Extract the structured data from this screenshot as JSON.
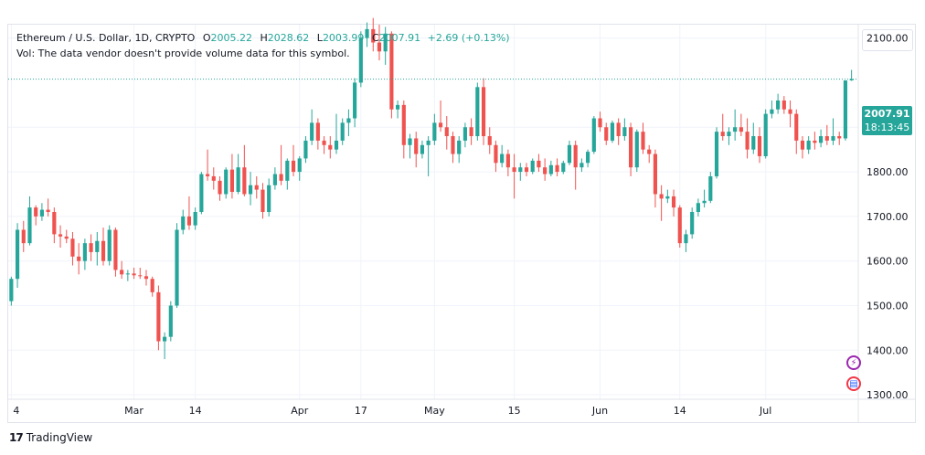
{
  "legend": {
    "symbol": "Ethereum / U.S. Dollar, 1D, CRYPTO",
    "open_label": "O",
    "open": "2005.22",
    "high_label": "H",
    "high": "2028.62",
    "low_label": "L",
    "low": "2003.99",
    "close_label": "C",
    "close": "2007.91",
    "change": "+2.69 (+0.13%)",
    "volume_note": "Vol: The data vendor doesn't provide volume data for this symbol."
  },
  "price_tag": {
    "price": "2007.91",
    "countdown": "18:13:45"
  },
  "brand": {
    "name": "TradingView"
  },
  "colors": {
    "up": "#26a69a",
    "down": "#ef5350",
    "grid": "#f0f3fa"
  },
  "chart_data": {
    "type": "candlestick",
    "y_ticks": [
      "2100.00",
      "1900.00",
      "1800.00",
      "1700.00",
      "1600.00",
      "1500.00",
      "1400.00",
      "1300.00"
    ],
    "ylim": [
      1290,
      2130
    ],
    "x_ticks": [
      "4",
      "Mar",
      "14",
      "Apr",
      "17",
      "May",
      "15",
      "Jun",
      "14",
      "Jul"
    ],
    "current_price": 2007.91,
    "candles": [
      [
        1510,
        1565,
        1500,
        1560
      ],
      [
        1560,
        1685,
        1540,
        1670
      ],
      [
        1670,
        1690,
        1620,
        1640
      ],
      [
        1640,
        1745,
        1635,
        1720
      ],
      [
        1720,
        1725,
        1680,
        1700
      ],
      [
        1700,
        1730,
        1690,
        1715
      ],
      [
        1715,
        1740,
        1700,
        1710
      ],
      [
        1710,
        1720,
        1640,
        1660
      ],
      [
        1660,
        1680,
        1630,
        1655
      ],
      [
        1655,
        1670,
        1640,
        1650
      ],
      [
        1650,
        1665,
        1590,
        1610
      ],
      [
        1610,
        1640,
        1570,
        1600
      ],
      [
        1600,
        1650,
        1580,
        1640
      ],
      [
        1640,
        1660,
        1600,
        1620
      ],
      [
        1620,
        1665,
        1590,
        1645
      ],
      [
        1645,
        1675,
        1590,
        1600
      ],
      [
        1600,
        1680,
        1590,
        1670
      ],
      [
        1670,
        1675,
        1565,
        1580
      ],
      [
        1580,
        1600,
        1560,
        1570
      ],
      [
        1570,
        1580,
        1555,
        1572
      ],
      [
        1572,
        1585,
        1560,
        1568
      ],
      [
        1568,
        1585,
        1560,
        1566
      ],
      [
        1566,
        1580,
        1545,
        1560
      ],
      [
        1560,
        1565,
        1520,
        1530
      ],
      [
        1530,
        1545,
        1400,
        1420
      ],
      [
        1420,
        1440,
        1380,
        1430
      ],
      [
        1430,
        1510,
        1420,
        1500
      ],
      [
        1500,
        1685,
        1495,
        1670
      ],
      [
        1670,
        1715,
        1660,
        1700
      ],
      [
        1700,
        1745,
        1670,
        1680
      ],
      [
        1680,
        1720,
        1670,
        1710
      ],
      [
        1710,
        1800,
        1705,
        1795
      ],
      [
        1795,
        1850,
        1780,
        1790
      ],
      [
        1790,
        1810,
        1760,
        1780
      ],
      [
        1780,
        1790,
        1735,
        1750
      ],
      [
        1750,
        1810,
        1740,
        1805
      ],
      [
        1805,
        1840,
        1740,
        1755
      ],
      [
        1755,
        1840,
        1750,
        1810
      ],
      [
        1810,
        1860,
        1745,
        1750
      ],
      [
        1750,
        1800,
        1725,
        1770
      ],
      [
        1770,
        1790,
        1740,
        1760
      ],
      [
        1760,
        1775,
        1695,
        1710
      ],
      [
        1710,
        1785,
        1700,
        1770
      ],
      [
        1770,
        1810,
        1760,
        1795
      ],
      [
        1795,
        1860,
        1770,
        1780
      ],
      [
        1780,
        1830,
        1760,
        1825
      ],
      [
        1825,
        1860,
        1790,
        1800
      ],
      [
        1800,
        1835,
        1780,
        1830
      ],
      [
        1830,
        1880,
        1820,
        1870
      ],
      [
        1870,
        1940,
        1860,
        1910
      ],
      [
        1910,
        1920,
        1850,
        1870
      ],
      [
        1870,
        1880,
        1840,
        1860
      ],
      [
        1860,
        1880,
        1830,
        1850
      ],
      [
        1850,
        1930,
        1840,
        1870
      ],
      [
        1870,
        1920,
        1860,
        1910
      ],
      [
        1910,
        1940,
        1880,
        1920
      ],
      [
        1920,
        2010,
        1900,
        2000
      ],
      [
        2000,
        2115,
        1990,
        2100
      ],
      [
        2100,
        2135,
        2080,
        2120
      ],
      [
        2120,
        2145,
        2070,
        2090
      ],
      [
        2090,
        2130,
        2050,
        2070
      ],
      [
        2070,
        2125,
        2040,
        2110
      ],
      [
        2110,
        2115,
        1920,
        1940
      ],
      [
        1940,
        1960,
        1920,
        1950
      ],
      [
        1950,
        1960,
        1830,
        1860
      ],
      [
        1860,
        1885,
        1830,
        1875
      ],
      [
        1875,
        1890,
        1810,
        1840
      ],
      [
        1840,
        1870,
        1830,
        1860
      ],
      [
        1860,
        1880,
        1790,
        1870
      ],
      [
        1870,
        1930,
        1860,
        1910
      ],
      [
        1910,
        1960,
        1890,
        1900
      ],
      [
        1900,
        1925,
        1850,
        1880
      ],
      [
        1880,
        1890,
        1820,
        1840
      ],
      [
        1840,
        1880,
        1820,
        1870
      ],
      [
        1870,
        1910,
        1855,
        1900
      ],
      [
        1900,
        1920,
        1860,
        1880
      ],
      [
        1880,
        2000,
        1870,
        1990
      ],
      [
        1990,
        2010,
        1860,
        1880
      ],
      [
        1880,
        1900,
        1840,
        1860
      ],
      [
        1860,
        1870,
        1800,
        1820
      ],
      [
        1820,
        1860,
        1810,
        1840
      ],
      [
        1840,
        1850,
        1790,
        1810
      ],
      [
        1810,
        1840,
        1740,
        1800
      ],
      [
        1800,
        1820,
        1780,
        1810
      ],
      [
        1810,
        1820,
        1790,
        1800
      ],
      [
        1800,
        1830,
        1795,
        1825
      ],
      [
        1825,
        1840,
        1800,
        1810
      ],
      [
        1810,
        1830,
        1780,
        1795
      ],
      [
        1795,
        1825,
        1790,
        1815
      ],
      [
        1815,
        1830,
        1790,
        1800
      ],
      [
        1800,
        1825,
        1795,
        1820
      ],
      [
        1820,
        1870,
        1815,
        1860
      ],
      [
        1860,
        1870,
        1760,
        1810
      ],
      [
        1810,
        1830,
        1800,
        1820
      ],
      [
        1820,
        1850,
        1810,
        1845
      ],
      [
        1845,
        1925,
        1840,
        1920
      ],
      [
        1920,
        1935,
        1890,
        1900
      ],
      [
        1900,
        1910,
        1860,
        1870
      ],
      [
        1870,
        1915,
        1865,
        1910
      ],
      [
        1910,
        1920,
        1860,
        1880
      ],
      [
        1880,
        1920,
        1870,
        1900
      ],
      [
        1900,
        1910,
        1790,
        1810
      ],
      [
        1810,
        1895,
        1800,
        1890
      ],
      [
        1890,
        1910,
        1840,
        1850
      ],
      [
        1850,
        1860,
        1820,
        1840
      ],
      [
        1840,
        1850,
        1720,
        1750
      ],
      [
        1750,
        1770,
        1690,
        1740
      ],
      [
        1740,
        1760,
        1730,
        1745
      ],
      [
        1745,
        1760,
        1700,
        1720
      ],
      [
        1720,
        1725,
        1630,
        1640
      ],
      [
        1640,
        1670,
        1620,
        1660
      ],
      [
        1660,
        1720,
        1650,
        1710
      ],
      [
        1710,
        1740,
        1700,
        1730
      ],
      [
        1730,
        1760,
        1720,
        1735
      ],
      [
        1735,
        1800,
        1730,
        1790
      ],
      [
        1790,
        1900,
        1785,
        1890
      ],
      [
        1890,
        1930,
        1870,
        1880
      ],
      [
        1880,
        1900,
        1860,
        1890
      ],
      [
        1890,
        1940,
        1870,
        1900
      ],
      [
        1900,
        1930,
        1880,
        1890
      ],
      [
        1890,
        1920,
        1830,
        1850
      ],
      [
        1850,
        1910,
        1840,
        1880
      ],
      [
        1880,
        1900,
        1820,
        1835
      ],
      [
        1835,
        1940,
        1830,
        1930
      ],
      [
        1930,
        1960,
        1920,
        1940
      ],
      [
        1940,
        1975,
        1930,
        1960
      ],
      [
        1960,
        1970,
        1930,
        1940
      ],
      [
        1940,
        1960,
        1900,
        1930
      ],
      [
        1930,
        1940,
        1840,
        1870
      ],
      [
        1870,
        1880,
        1830,
        1850
      ],
      [
        1850,
        1880,
        1840,
        1870
      ],
      [
        1870,
        1890,
        1850,
        1865
      ],
      [
        1865,
        1895,
        1855,
        1880
      ],
      [
        1880,
        1905,
        1860,
        1870
      ],
      [
        1870,
        1920,
        1860,
        1880
      ],
      [
        1880,
        1890,
        1860,
        1875
      ],
      [
        1875,
        2005,
        1870,
        2005
      ],
      [
        2005.22,
        2028.62,
        2003.99,
        2007.91
      ]
    ]
  }
}
